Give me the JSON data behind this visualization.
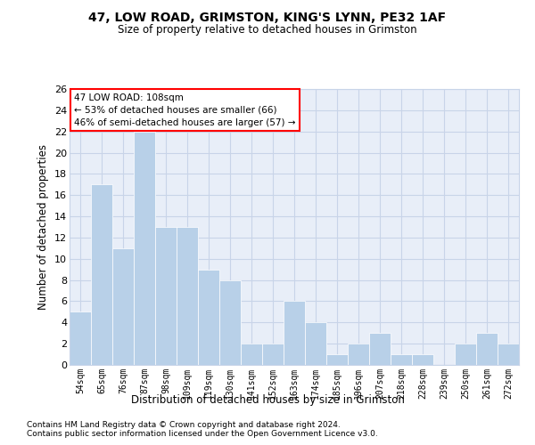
{
  "title1": "47, LOW ROAD, GRIMSTON, KING'S LYNN, PE32 1AF",
  "title2": "Size of property relative to detached houses in Grimston",
  "xlabel": "Distribution of detached houses by size in Grimston",
  "ylabel": "Number of detached properties",
  "categories": [
    "54sqm",
    "65sqm",
    "76sqm",
    "87sqm",
    "98sqm",
    "109sqm",
    "119sqm",
    "130sqm",
    "141sqm",
    "152sqm",
    "163sqm",
    "174sqm",
    "185sqm",
    "196sqm",
    "207sqm",
    "218sqm",
    "228sqm",
    "239sqm",
    "250sqm",
    "261sqm",
    "272sqm"
  ],
  "values": [
    5,
    17,
    11,
    22,
    13,
    13,
    9,
    8,
    2,
    2,
    6,
    4,
    1,
    2,
    3,
    1,
    1,
    0,
    2,
    3,
    2
  ],
  "bar_color": "#b8d0e8",
  "annotation_text": "47 LOW ROAD: 108sqm\n← 53% of detached houses are smaller (66)\n46% of semi-detached houses are larger (57) →",
  "ylim": [
    0,
    26
  ],
  "yticks": [
    0,
    2,
    4,
    6,
    8,
    10,
    12,
    14,
    16,
    18,
    20,
    22,
    24,
    26
  ],
  "grid_color": "#c8d4e8",
  "bg_color": "#e8eef8",
  "footer1": "Contains HM Land Registry data © Crown copyright and database right 2024.",
  "footer2": "Contains public sector information licensed under the Open Government Licence v3.0."
}
